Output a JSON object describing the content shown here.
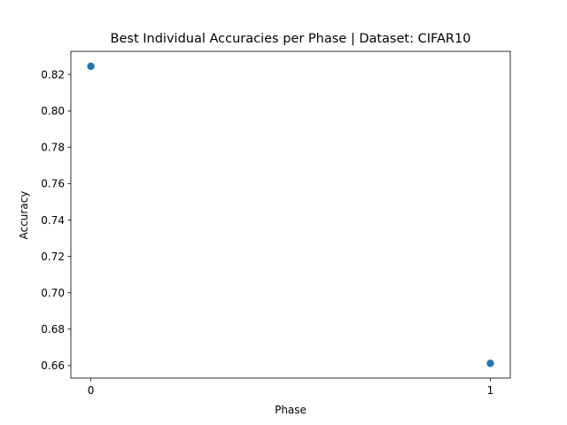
{
  "chart_data": {
    "type": "scatter",
    "title": "Best Individual Accuracies per Phase | Dataset: CIFAR10",
    "xlabel": "Phase",
    "ylabel": "Accuracy",
    "x": [
      0,
      1
    ],
    "y": [
      0.8245,
      0.6612
    ],
    "xlim": [
      -0.05,
      1.05
    ],
    "ylim": [
      0.6531,
      0.8327
    ],
    "xticks": [
      0,
      1
    ],
    "yticks": [
      0.66,
      0.68,
      0.7,
      0.72,
      0.74,
      0.76,
      0.78,
      0.8,
      0.82
    ],
    "ytick_labels": [
      "0.66",
      "0.68",
      "0.70",
      "0.72",
      "0.74",
      "0.76",
      "0.78",
      "0.80",
      "0.82"
    ],
    "xtick_labels": [
      "0",
      "1"
    ],
    "grid": false,
    "marker_color": "#1f77b4"
  }
}
